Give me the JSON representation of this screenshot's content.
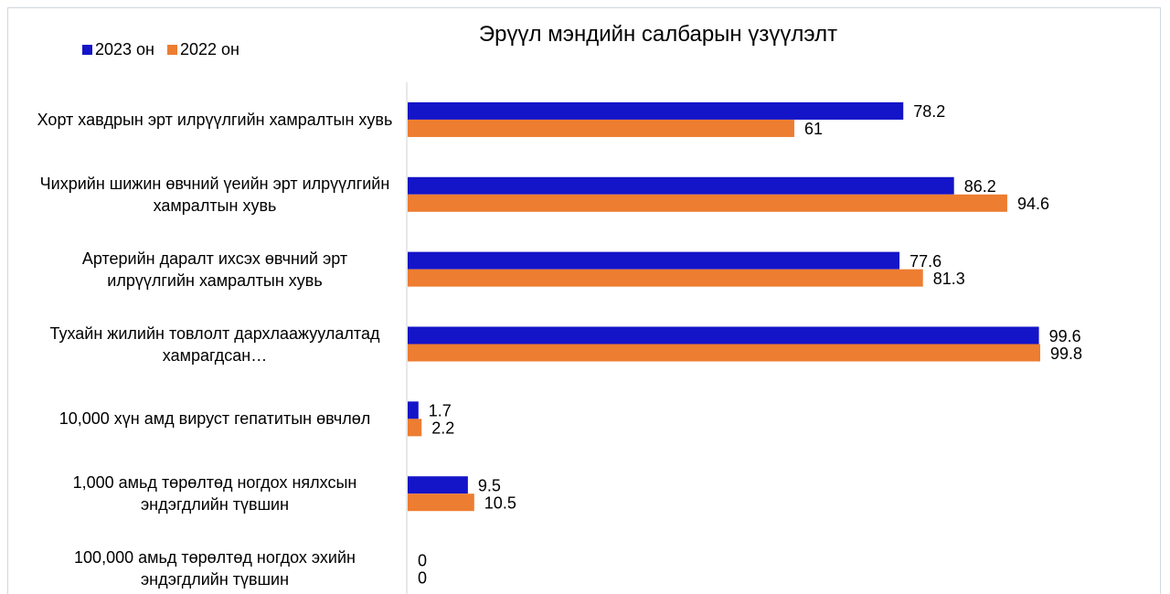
{
  "chart_data": {
    "type": "bar",
    "orientation": "horizontal",
    "title": "Эрүүл мэндийн салбарын үзүүлэлт",
    "legend": "top-left",
    "categories": [
      "Хорт хавдрын эрт илрүүлгийн хамралтын хувь",
      "Чихрийн шижин өвчний үеийн эрт илрүүлгийн хамралтын хувь",
      "Артерийн даралт ихсэх өвчний эрт илрүүлгийн хамралтын хувь",
      "Тухайн жилийн товлолт дархлаажуулалтад хамрагдсан…",
      "10,000 хүн амд вируст гепатитын өвчлөл",
      "1,000 амьд төрөлтөд ногдох нялхсын эндэгдлийн түвшин",
      "100,000 амьд төрөлтөд ногдох эхийн эндэгдлийн түвшин"
    ],
    "series": [
      {
        "name": "2023 он",
        "color": "#1414c8",
        "values": [
          78.2,
          86.2,
          77.6,
          99.6,
          1.7,
          9.5,
          0
        ]
      },
      {
        "name": "2022 он",
        "color": "#ed7d31",
        "values": [
          61,
          94.6,
          81.3,
          99.8,
          2.2,
          10.5,
          0
        ]
      }
    ]
  }
}
